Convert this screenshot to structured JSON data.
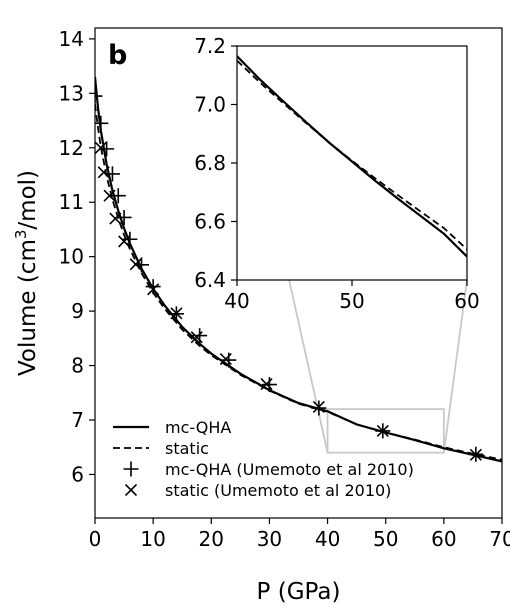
{
  "panel_label": "b",
  "chart_data": {
    "type": "line",
    "xlabel": "P (GPa)",
    "ylabel_main": "Volume (cm",
    "ylabel_sup": "3",
    "ylabel_tail": "/mol)",
    "xlim": [
      0,
      70
    ],
    "ylim": [
      5.2,
      14.2
    ],
    "xticks": [
      "0",
      "10",
      "20",
      "30",
      "40",
      "50",
      "60",
      "70"
    ],
    "yticks": [
      "6",
      "7",
      "8",
      "9",
      "10",
      "11",
      "12",
      "13",
      "14"
    ],
    "grid": false,
    "legend_position": "lower-left",
    "series": [
      {
        "name": "mc-QHA",
        "style": "solid",
        "x": [
          0,
          0.5,
          1,
          2,
          3,
          4,
          5,
          6,
          8,
          10,
          12,
          15,
          18,
          20,
          25,
          30,
          35,
          40,
          45,
          50,
          55,
          60,
          65,
          70
        ],
        "y": [
          13.3,
          12.75,
          12.32,
          11.7,
          11.22,
          10.84,
          10.52,
          10.24,
          9.78,
          9.41,
          9.1,
          8.71,
          8.4,
          8.22,
          7.85,
          7.55,
          7.31,
          7.16,
          6.92,
          6.77,
          6.63,
          6.48,
          6.36,
          6.24
        ]
      },
      {
        "name": "static",
        "style": "dashed",
        "x": [
          0,
          0.5,
          1,
          2,
          3,
          4,
          5,
          6,
          8,
          10,
          12,
          15,
          18,
          20,
          25,
          30,
          35,
          40,
          45,
          50,
          55,
          60,
          65,
          70
        ],
        "y": [
          12.8,
          12.38,
          12.02,
          11.48,
          11.05,
          10.7,
          10.4,
          10.14,
          9.7,
          9.34,
          9.04,
          8.66,
          8.36,
          8.19,
          7.83,
          7.54,
          7.3,
          7.15,
          6.92,
          6.77,
          6.64,
          6.5,
          6.38,
          6.27
        ]
      },
      {
        "name": "mc-QHA (Umemoto et al 2010)",
        "marker": "+",
        "x": [
          0,
          1,
          2,
          3,
          4,
          5,
          6,
          8,
          10,
          14,
          18,
          23,
          30,
          38.5,
          49.5,
          65.5
        ],
        "y": [
          12.95,
          12.45,
          11.98,
          11.52,
          11.12,
          10.72,
          10.32,
          9.85,
          9.45,
          8.95,
          8.55,
          8.1,
          7.65,
          7.22,
          6.8,
          6.37
        ]
      },
      {
        "name": "static (Umemoto et al 2010)",
        "marker": "x",
        "x": [
          1,
          1.5,
          2.5,
          3.5,
          5,
          7,
          10,
          14,
          17.5,
          22.5,
          29.5,
          38.5,
          49.5,
          65.5
        ],
        "y": [
          12.0,
          11.55,
          11.12,
          10.7,
          10.28,
          9.86,
          9.4,
          8.96,
          8.52,
          8.12,
          7.66,
          7.24,
          6.8,
          6.36
        ]
      }
    ],
    "inset": {
      "xlim": [
        40,
        60
      ],
      "ylim": [
        6.4,
        7.2
      ],
      "xticks": [
        "40",
        "50",
        "60"
      ],
      "yticks": [
        "6.4",
        "6.6",
        "6.8",
        "7.0",
        "7.2"
      ],
      "series": [
        {
          "name": "mc-QHA",
          "style": "solid",
          "x": [
            40,
            42,
            44,
            46,
            48,
            50,
            52,
            54,
            56,
            58,
            60
          ],
          "y": [
            7.165,
            7.085,
            7.012,
            6.94,
            6.87,
            6.805,
            6.74,
            6.678,
            6.618,
            6.558,
            6.48
          ]
        },
        {
          "name": "static",
          "style": "dashed",
          "x": [
            40,
            42,
            44,
            46,
            48,
            50,
            52,
            54,
            56,
            58,
            60
          ],
          "y": [
            7.15,
            7.075,
            7.005,
            6.937,
            6.87,
            6.808,
            6.748,
            6.69,
            6.633,
            6.577,
            6.505
          ]
        }
      ]
    }
  }
}
